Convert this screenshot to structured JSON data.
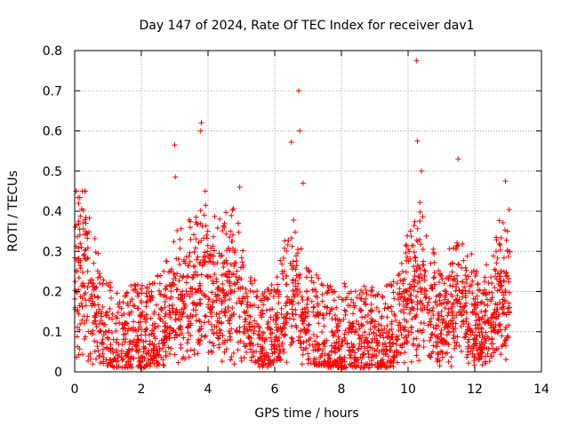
{
  "chart_data": {
    "type": "scatter",
    "title": "Day 147 of 2024, Rate Of TEC Index for receiver dav1",
    "xlabel": "GPS time / hours",
    "ylabel": "ROTI / TECUs",
    "xlim": [
      0,
      14
    ],
    "ylim": [
      0,
      0.8
    ],
    "xticks": [
      0,
      2,
      4,
      6,
      8,
      10,
      12,
      14
    ],
    "yticks": [
      0,
      0.1,
      0.2,
      0.3,
      0.4,
      0.5,
      0.6,
      0.7,
      0.8
    ],
    "xtick_labels": [
      "0",
      "2",
      "4",
      "6",
      "8",
      "10",
      "12",
      "14"
    ],
    "ytick_labels": [
      "0",
      "0.1",
      "0.2",
      "0.3",
      "0.4",
      "0.5",
      "0.6",
      "0.7",
      "0.8"
    ],
    "grid": true,
    "marker": "+",
    "color": "#ff0000",
    "series": [
      {
        "name": "dav1",
        "x_range": [
          0,
          13.05
        ],
        "bulk_range": [
          0.01,
          0.3
        ],
        "notable_points": [
          {
            "x": 10.25,
            "y": 0.775
          },
          {
            "x": 6.72,
            "y": 0.7
          },
          {
            "x": 3.8,
            "y": 0.62
          },
          {
            "x": 3.78,
            "y": 0.6
          },
          {
            "x": 6.75,
            "y": 0.6
          },
          {
            "x": 3.0,
            "y": 0.565
          },
          {
            "x": 10.28,
            "y": 0.575
          },
          {
            "x": 6.5,
            "y": 0.572
          },
          {
            "x": 11.5,
            "y": 0.53
          },
          {
            "x": 10.4,
            "y": 0.5
          },
          {
            "x": 3.02,
            "y": 0.485
          },
          {
            "x": 12.92,
            "y": 0.475
          },
          {
            "x": 6.85,
            "y": 0.47
          },
          {
            "x": 4.95,
            "y": 0.46
          },
          {
            "x": 0.05,
            "y": 0.45
          },
          {
            "x": 0.12,
            "y": 0.42
          }
        ]
      }
    ]
  }
}
